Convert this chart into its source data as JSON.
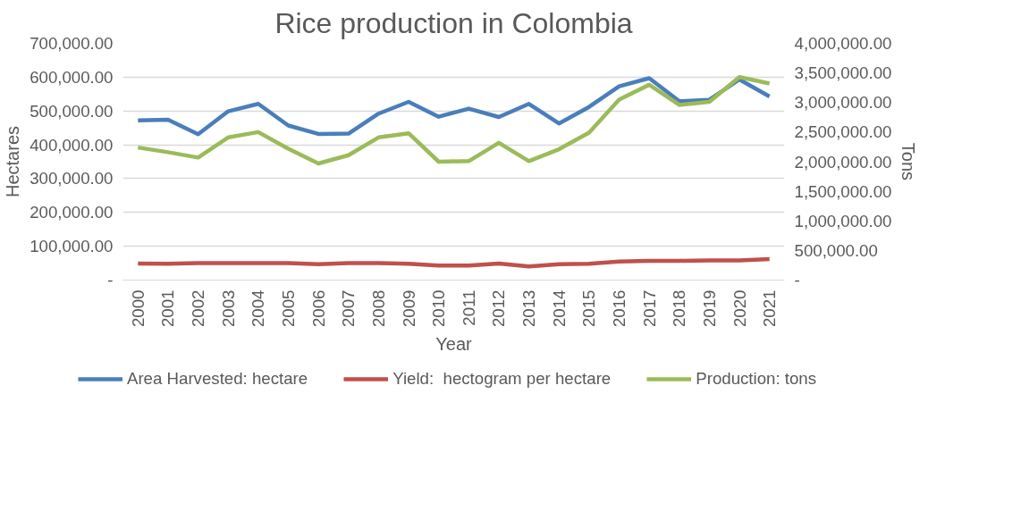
{
  "chart_data": {
    "type": "line",
    "title": "Rice production in Colombia",
    "xlabel": "Year",
    "ylabel": "Hectares",
    "y2label": "Tons",
    "categories": [
      "2000",
      "2001",
      "2002",
      "2003",
      "2004",
      "2005",
      "2006",
      "2007",
      "2008",
      "2009",
      "2010",
      "2011",
      "2012",
      "2013",
      "2014",
      "2015",
      "2016",
      "2017",
      "2018",
      "2019",
      "2020",
      "2021"
    ],
    "series": [
      {
        "name": "Area Harvested: hectare",
        "color": "#4a7ebb",
        "values": [
          472000,
          474000,
          431000,
          499000,
          521000,
          457000,
          432000,
          433000,
          492000,
          527000,
          483000,
          507000,
          482000,
          521000,
          463000,
          512000,
          573000,
          597000,
          529000,
          533000,
          593000,
          543000
        ]
      },
      {
        "name": "Yield:  hectogram per hectare",
        "color": "#c0504d",
        "values": [
          49000,
          48000,
          50000,
          50000,
          50000,
          50000,
          47000,
          50000,
          50000,
          48000,
          43000,
          43000,
          49000,
          40000,
          47000,
          48000,
          55000,
          57000,
          57000,
          58000,
          58000,
          62000
        ]
      },
      {
        "name": "Production: tons",
        "color": "#9bbb59",
        "axis": "y2",
        "values": [
          2240000,
          2160000,
          2070000,
          2410000,
          2500000,
          2220000,
          1970000,
          2110000,
          2410000,
          2480000,
          2000000,
          2010000,
          2320000,
          2010000,
          2210000,
          2490000,
          3050000,
          3300000,
          2960000,
          3010000,
          3430000,
          3320000
        ]
      }
    ],
    "ylim": [
      0,
      700000
    ],
    "yticks": [
      {
        "value": 0,
        "label": "-"
      },
      {
        "value": 100000,
        "label": "100,000.00"
      },
      {
        "value": 200000,
        "label": "200,000.00"
      },
      {
        "value": 300000,
        "label": "300,000.00"
      },
      {
        "value": 400000,
        "label": "400,000.00"
      },
      {
        "value": 500000,
        "label": "500,000.00"
      },
      {
        "value": 600000,
        "label": "600,000.00"
      },
      {
        "value": 700000,
        "label": "700,000.00"
      }
    ],
    "y2lim": [
      0,
      4000000
    ],
    "y2ticks": [
      {
        "value": 0,
        "label": "-"
      },
      {
        "value": 500000,
        "label": "500,000.00"
      },
      {
        "value": 1000000,
        "label": "1,000,000.00"
      },
      {
        "value": 1500000,
        "label": "1,500,000.00"
      },
      {
        "value": 2000000,
        "label": "2,000,000.00"
      },
      {
        "value": 2500000,
        "label": "2,500,000.00"
      },
      {
        "value": 3000000,
        "label": "3,000,000.00"
      },
      {
        "value": 3500000,
        "label": "3,500,000.00"
      },
      {
        "value": 4000000,
        "label": "4,000,000.00"
      }
    ],
    "grid": "y",
    "legend": "bottom",
    "line_style": "solid",
    "marker": "none"
  }
}
